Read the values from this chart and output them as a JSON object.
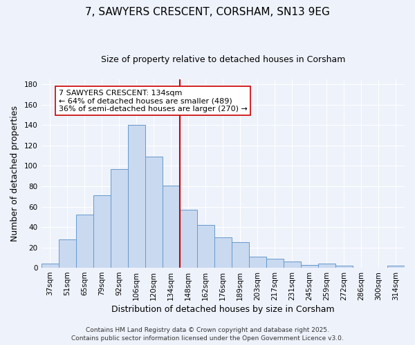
{
  "title": "7, SAWYERS CRESCENT, CORSHAM, SN13 9EG",
  "subtitle": "Size of property relative to detached houses in Corsham",
  "xlabel": "Distribution of detached houses by size in Corsham",
  "ylabel": "Number of detached properties",
  "bin_labels": [
    "37sqm",
    "51sqm",
    "65sqm",
    "79sqm",
    "92sqm",
    "106sqm",
    "120sqm",
    "134sqm",
    "148sqm",
    "162sqm",
    "176sqm",
    "189sqm",
    "203sqm",
    "217sqm",
    "231sqm",
    "245sqm",
    "259sqm",
    "272sqm",
    "286sqm",
    "300sqm",
    "314sqm"
  ],
  "bar_heights": [
    4,
    28,
    52,
    71,
    97,
    140,
    109,
    81,
    57,
    42,
    30,
    25,
    11,
    9,
    6,
    3,
    4,
    2,
    0,
    0,
    2
  ],
  "bar_color": "#c9d9f0",
  "bar_edge_color": "#6699cc",
  "vline_position": 7.5,
  "vline_color": "#cc0000",
  "ylim": [
    0,
    185
  ],
  "yticks": [
    0,
    20,
    40,
    60,
    80,
    100,
    120,
    140,
    160,
    180
  ],
  "annotation_title": "7 SAWYERS CRESCENT: 134sqm",
  "annotation_line1": "← 64% of detached houses are smaller (489)",
  "annotation_line2": "36% of semi-detached houses are larger (270) →",
  "annotation_box_color": "#ffffff",
  "annotation_box_edge": "#cc0000",
  "footer1": "Contains HM Land Registry data © Crown copyright and database right 2025.",
  "footer2": "Contains public sector information licensed under the Open Government Licence v3.0.",
  "background_color": "#eef2fb",
  "grid_color": "#ffffff",
  "title_fontsize": 11,
  "subtitle_fontsize": 9,
  "axis_label_fontsize": 9,
  "tick_fontsize": 7.5,
  "annotation_fontsize": 8,
  "footer_fontsize": 6.5
}
